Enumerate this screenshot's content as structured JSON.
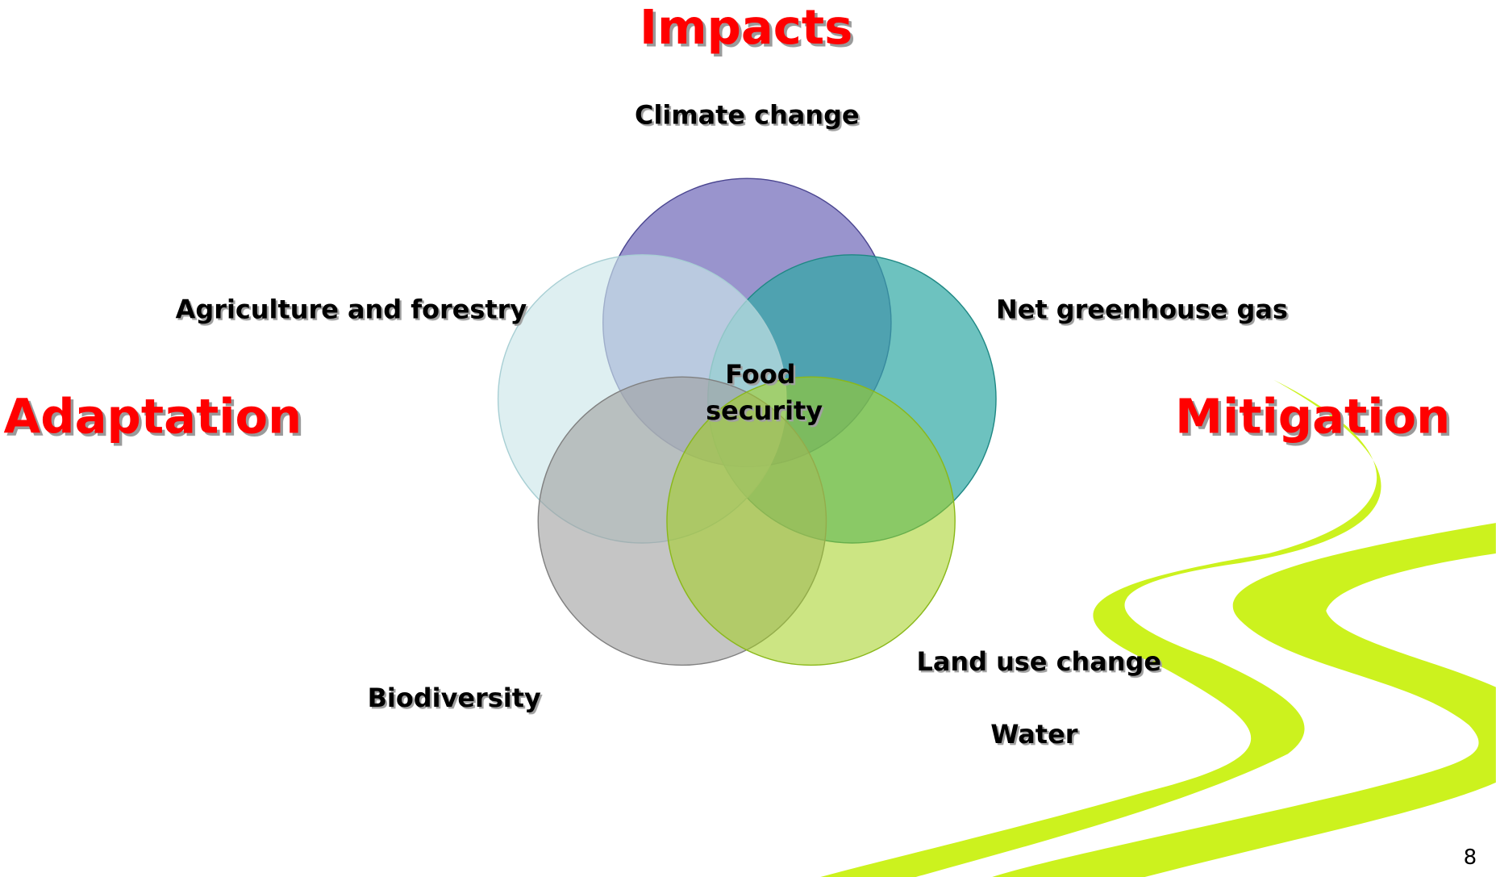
{
  "header": {
    "title": "Impacts"
  },
  "sides": {
    "left": "Adaptation",
    "right": "Mitigation"
  },
  "nodes": [
    {
      "label": "Climate change"
    },
    {
      "label": "Agriculture and forestry"
    },
    {
      "label": "Net greenhouse gas"
    },
    {
      "label": "Biodiversity"
    },
    {
      "label": "Land use change"
    },
    {
      "label": "Water"
    }
  ],
  "center": {
    "lines": [
      "Food",
      "security"
    ]
  },
  "footer": {
    "page": "8"
  }
}
